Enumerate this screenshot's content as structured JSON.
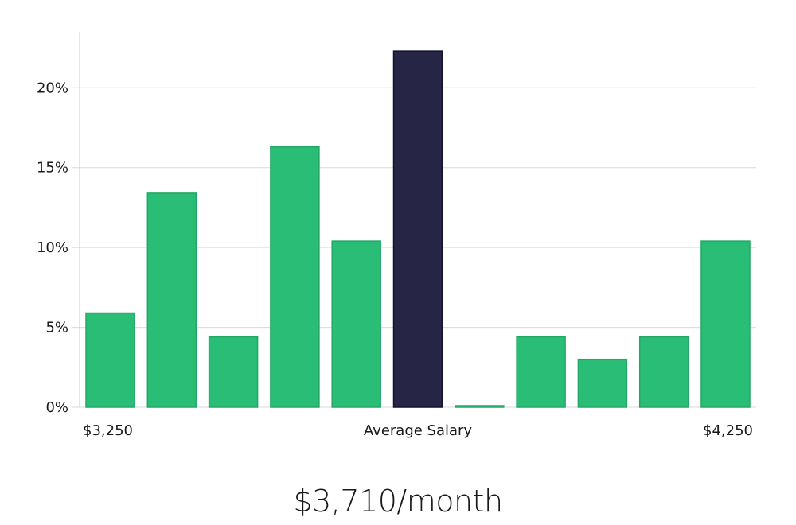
{
  "chart_data": {
    "type": "bar",
    "values": [
      5.9,
      13.4,
      4.4,
      16.3,
      10.4,
      22.3,
      0.1,
      4.4,
      3.0,
      4.4,
      10.4
    ],
    "highlight_index": 5,
    "ylim": [
      0,
      23.5
    ],
    "yticks": [
      "0%",
      "5%",
      "10%",
      "15%",
      "20%"
    ],
    "ytick_values": [
      0,
      5,
      10,
      15,
      20
    ],
    "x_labels": {
      "left": "$3,250",
      "center": "Average Salary",
      "right": "$4,250"
    },
    "grid": true,
    "colors": {
      "bar": "#2abd76",
      "bar_stroke": "#22a866",
      "highlight": "#272546",
      "highlight_stroke": "#141233",
      "grid": "#d9d9d9",
      "axis": "#cccccc"
    }
  },
  "summary": {
    "average_salary": "$3,710/month"
  }
}
